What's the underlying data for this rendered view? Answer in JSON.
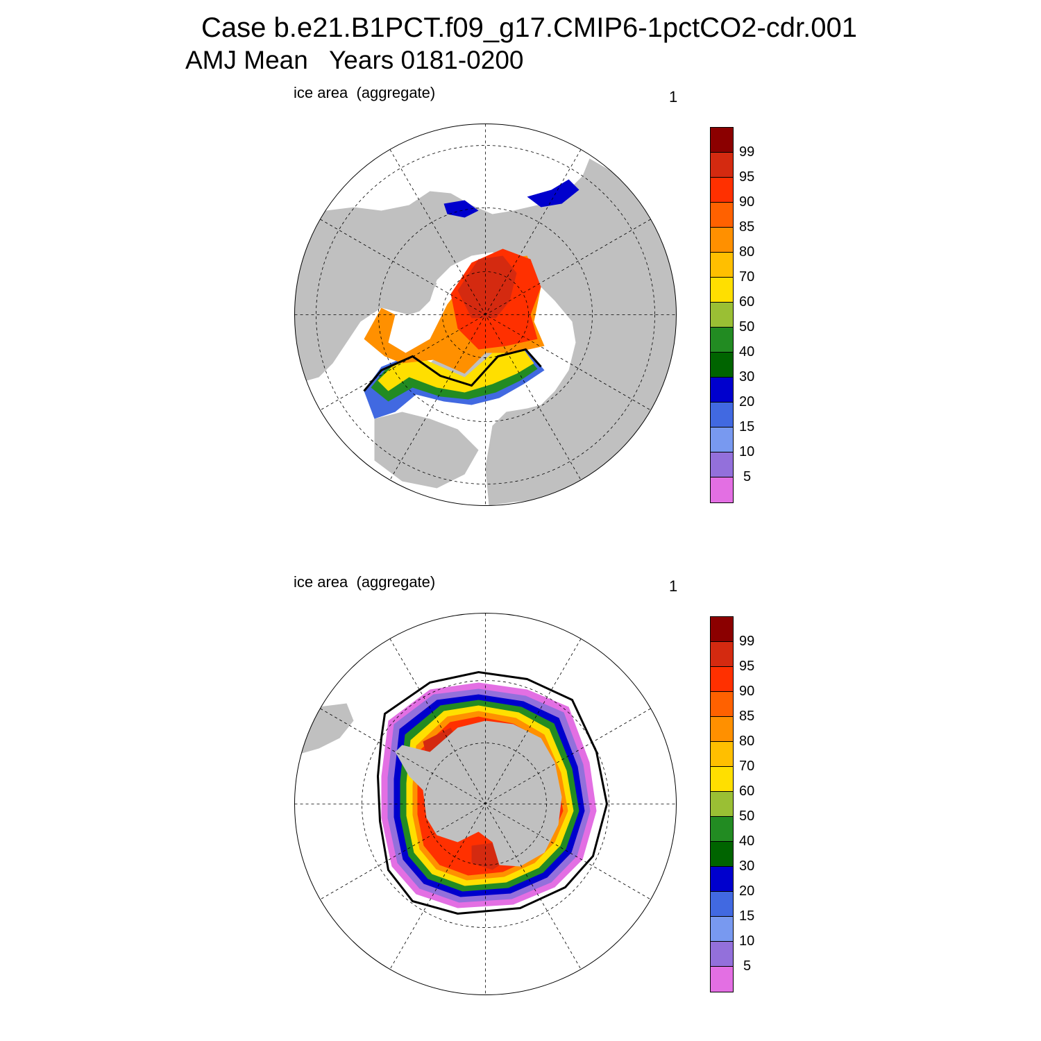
{
  "title": {
    "line1": "Case b.e21.B1PCT.f09_g17.CMIP6-1pctCO2-cdr.001",
    "line2": "AMJ Mean   Years 0181-0200"
  },
  "panels": [
    {
      "id": "north",
      "label": "ice area  (aggregate)",
      "number": "1",
      "hemisphere": "Northern"
    },
    {
      "id": "south",
      "label": "ice area  (aggregate)",
      "number": "1",
      "hemisphere": "Southern"
    }
  ],
  "colorbar": {
    "labels": [
      "99",
      "95",
      "90",
      "85",
      "80",
      "70",
      "60",
      "50",
      "40",
      "30",
      "20",
      "15",
      "10",
      "5"
    ],
    "colors": [
      "#8b0000",
      "#d42a10",
      "#ff3000",
      "#ff6100",
      "#ff9000",
      "#ffbf00",
      "#ffdf00",
      "#9abf34",
      "#228b22",
      "#006400",
      "#0000cd",
      "#4169e1",
      "#7899f0",
      "#9370db",
      "#e36fe3"
    ]
  },
  "colors": {
    "land": "#c0c0c0",
    "ocean": "#ffffff",
    "extent_contour": "#000000"
  }
}
